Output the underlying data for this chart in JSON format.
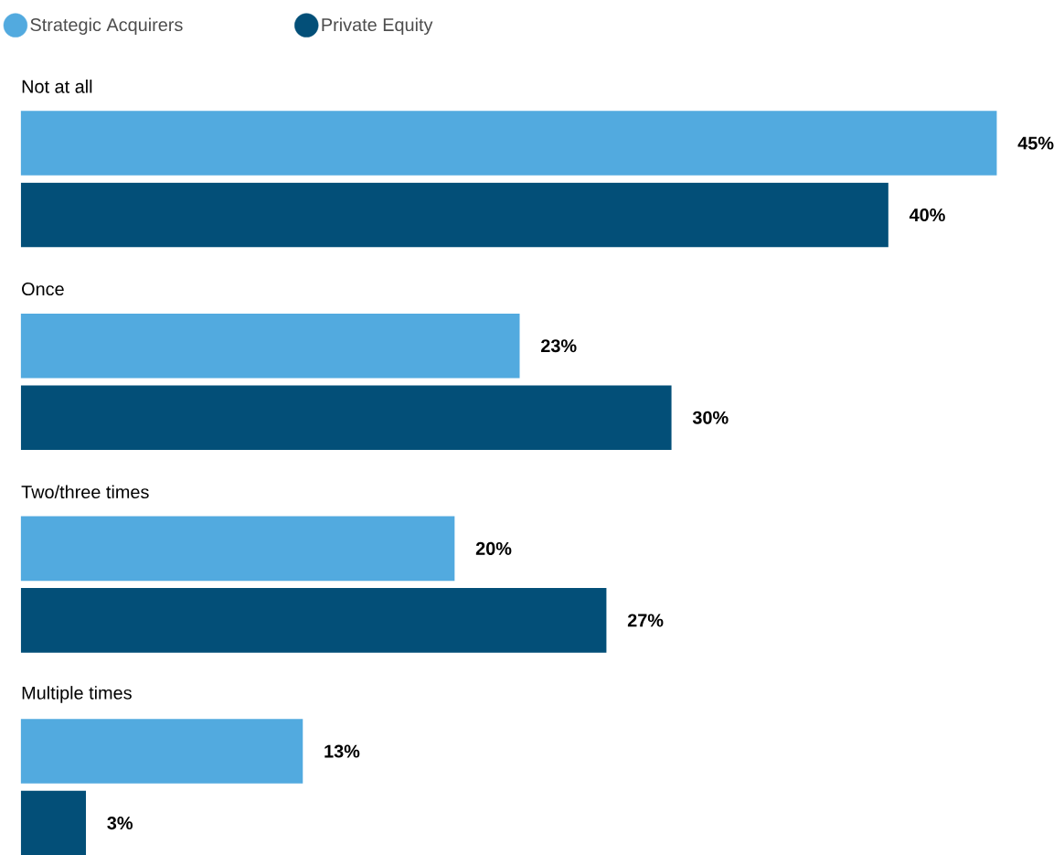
{
  "chart_data": {
    "type": "bar",
    "orientation": "horizontal",
    "categories": [
      "Not at all",
      "Once",
      "Two/three times",
      "Multiple times"
    ],
    "series": [
      {
        "name": "Strategic Acquirers",
        "color": "#52aadf",
        "values": [
          45,
          23,
          20,
          13
        ],
        "value_labels": [
          "45%",
          "23%",
          "20%",
          "13%"
        ]
      },
      {
        "name": "Private Equity",
        "color": "#034f78",
        "values": [
          40,
          30,
          27,
          3
        ],
        "value_labels": [
          "40%",
          "30%",
          "27%",
          "3%"
        ]
      }
    ],
    "legend": "top left",
    "marker": "circle"
  }
}
